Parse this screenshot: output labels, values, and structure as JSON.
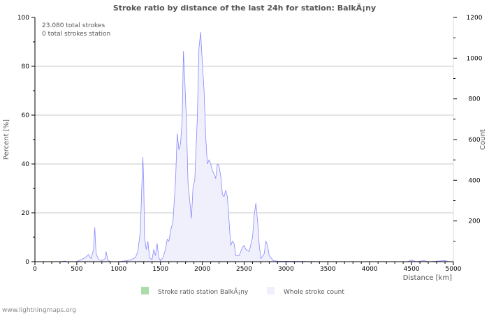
{
  "chart_data": {
    "type": "area",
    "title": "Stroke ratio by distance of the last 24h for station: BalkÃ¡ny",
    "xlabel": "Distance   [km]",
    "ylabel_left": "Percent   [%]",
    "ylabel_right": "Count",
    "xlim": [
      0,
      5000
    ],
    "ylim_left": [
      0,
      100
    ],
    "ylim_right": [
      0,
      1200
    ],
    "x_ticks": [
      0,
      500,
      1000,
      1500,
      2000,
      2500,
      3000,
      3500,
      4000,
      4500,
      5000
    ],
    "y_left_ticks": [
      0,
      20,
      40,
      60,
      80,
      100
    ],
    "y_right_ticks": [
      200,
      400,
      600,
      800,
      1000,
      1200
    ],
    "grid": true,
    "annotations": [
      "23.080 total strokes",
      "0 total strokes station"
    ],
    "legend": {
      "placement": "bottom",
      "entries": [
        "Stroke ratio station BalkÃ¡ny",
        "Whole stroke count"
      ]
    },
    "series": [
      {
        "name": "Stroke ratio station BalkÃ¡ny",
        "axis": "left",
        "color": "#aaddaa",
        "points": []
      },
      {
        "name": "Whole stroke count",
        "axis": "right",
        "color": "#8888ff",
        "fill": "#f0f0fc",
        "points": [
          [
            0,
            0
          ],
          [
            300,
            0
          ],
          [
            350,
            3
          ],
          [
            400,
            0
          ],
          [
            500,
            0
          ],
          [
            550,
            10
          ],
          [
            600,
            20
          ],
          [
            640,
            35
          ],
          [
            670,
            15
          ],
          [
            700,
            60
          ],
          [
            715,
            168
          ],
          [
            730,
            40
          ],
          [
            760,
            10
          ],
          [
            800,
            5
          ],
          [
            840,
            15
          ],
          [
            850,
            50
          ],
          [
            870,
            10
          ],
          [
            900,
            0
          ],
          [
            1000,
            0
          ],
          [
            1100,
            5
          ],
          [
            1150,
            10
          ],
          [
            1200,
            20
          ],
          [
            1230,
            50
          ],
          [
            1260,
            150
          ],
          [
            1280,
            400
          ],
          [
            1290,
            514
          ],
          [
            1300,
            400
          ],
          [
            1310,
            120
          ],
          [
            1330,
            60
          ],
          [
            1350,
            100
          ],
          [
            1370,
            20
          ],
          [
            1400,
            10
          ],
          [
            1420,
            60
          ],
          [
            1440,
            30
          ],
          [
            1460,
            90
          ],
          [
            1480,
            20
          ],
          [
            1500,
            5
          ],
          [
            1530,
            20
          ],
          [
            1560,
            60
          ],
          [
            1580,
            110
          ],
          [
            1600,
            100
          ],
          [
            1620,
            150
          ],
          [
            1650,
            200
          ],
          [
            1680,
            400
          ],
          [
            1700,
            630
          ],
          [
            1720,
            550
          ],
          [
            1740,
            580
          ],
          [
            1760,
            700
          ],
          [
            1775,
            1035
          ],
          [
            1790,
            900
          ],
          [
            1810,
            700
          ],
          [
            1830,
            380
          ],
          [
            1850,
            300
          ],
          [
            1870,
            212
          ],
          [
            1890,
            370
          ],
          [
            1910,
            400
          ],
          [
            1940,
            700
          ],
          [
            1960,
            1050
          ],
          [
            1980,
            1128
          ],
          [
            2000,
            980
          ],
          [
            2020,
            850
          ],
          [
            2040,
            620
          ],
          [
            2060,
            480
          ],
          [
            2080,
            500
          ],
          [
            2100,
            480
          ],
          [
            2120,
            450
          ],
          [
            2140,
            430
          ],
          [
            2160,
            410
          ],
          [
            2180,
            480
          ],
          [
            2200,
            470
          ],
          [
            2220,
            420
          ],
          [
            2240,
            330
          ],
          [
            2260,
            320
          ],
          [
            2280,
            350
          ],
          [
            2300,
            320
          ],
          [
            2320,
            200
          ],
          [
            2340,
            80
          ],
          [
            2360,
            100
          ],
          [
            2380,
            90
          ],
          [
            2400,
            30
          ],
          [
            2440,
            30
          ],
          [
            2480,
            70
          ],
          [
            2500,
            80
          ],
          [
            2520,
            60
          ],
          [
            2560,
            50
          ],
          [
            2600,
            120
          ],
          [
            2620,
            230
          ],
          [
            2640,
            288
          ],
          [
            2660,
            200
          ],
          [
            2680,
            80
          ],
          [
            2700,
            15
          ],
          [
            2740,
            40
          ],
          [
            2760,
            100
          ],
          [
            2780,
            80
          ],
          [
            2800,
            30
          ],
          [
            2850,
            5
          ],
          [
            2900,
            2
          ],
          [
            3000,
            2
          ],
          [
            3500,
            0
          ],
          [
            4450,
            0
          ],
          [
            4500,
            8
          ],
          [
            4550,
            0
          ],
          [
            4650,
            5
          ],
          [
            4700,
            0
          ],
          [
            4900,
            5
          ],
          [
            4950,
            0
          ],
          [
            5000,
            0
          ]
        ]
      }
    ]
  },
  "footer": "www.lightningmaps.org"
}
